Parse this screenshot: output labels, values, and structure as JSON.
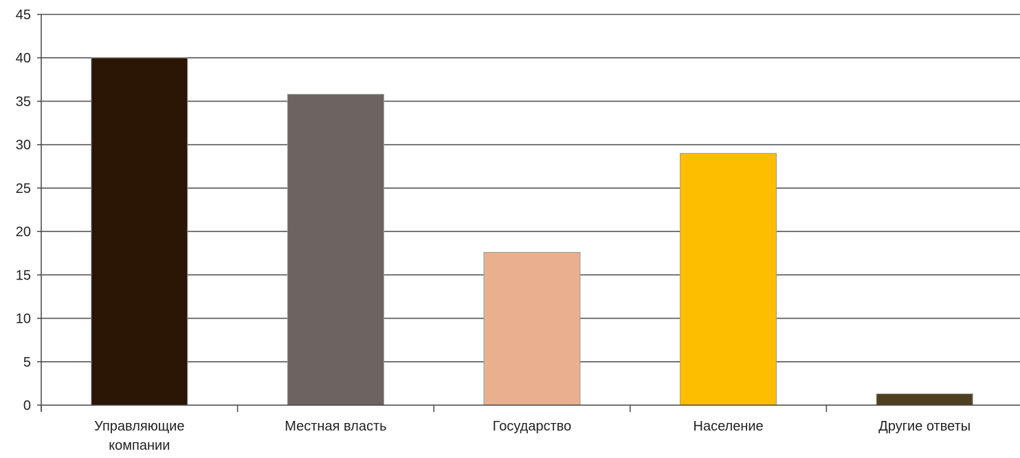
{
  "chart_data": {
    "type": "bar",
    "title": "",
    "xlabel": "",
    "ylabel": "",
    "ylim": [
      0,
      45
    ],
    "yticks": [
      0,
      5,
      10,
      15,
      20,
      25,
      30,
      35,
      40,
      45
    ],
    "grid": true,
    "legend": "none",
    "categories": [
      [
        "Управляющие",
        "компании"
      ],
      [
        "Местная власть"
      ],
      [
        "Государство"
      ],
      [
        "Население"
      ],
      [
        "Другие ответы"
      ]
    ],
    "values": [
      40,
      35.8,
      17.6,
      29,
      1.3
    ],
    "colors": [
      "#2b1606",
      "#6d6360",
      "#e8b08e",
      "#fdbe00",
      "#4e4020"
    ]
  }
}
